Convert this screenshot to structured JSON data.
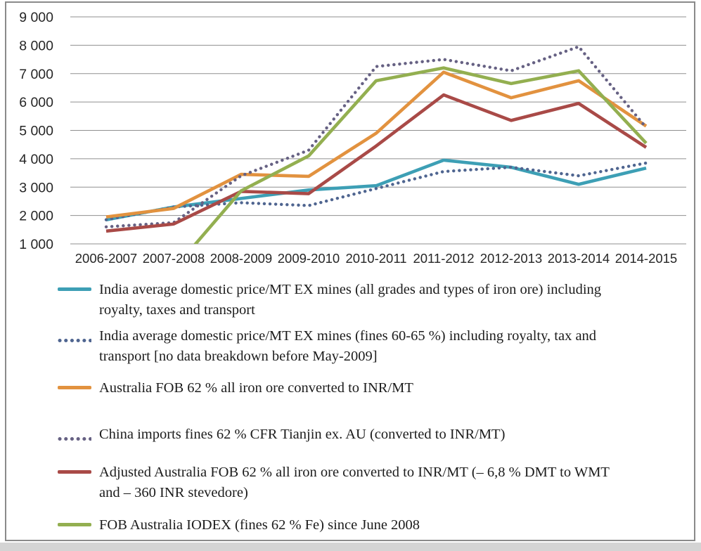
{
  "figure": {
    "type": "scanned line chart",
    "border_color": "#8a8a8a",
    "background": "#ffffff"
  },
  "chart_data": {
    "type": "line",
    "title": "",
    "xlabel": "",
    "ylabel": "",
    "grid": true,
    "legend_position": "bottom-left",
    "ylim": [
      1000,
      9000
    ],
    "y_tick_labels": [
      "9 000",
      "8 000",
      "7 000",
      "6 000",
      "5 000",
      "4 000",
      "3 000",
      "2 000",
      "1 000"
    ],
    "categories": [
      "2006-2007",
      "2007-2008",
      "2008-2009",
      "2009-2010",
      "2010-2011",
      "2011-2012",
      "2012-2013",
      "2013-2014",
      "2014-2015"
    ],
    "units": "INR/MT",
    "series": [
      {
        "name": "India average domestic price/MT EX mines (all grades and types of iron ore) including royalty, taxes and transport",
        "label_lines": [
          "India average domestic price/MT EX mines (all grades and types of iron ore) including",
          "royalty, taxes and transport"
        ],
        "color": "#3d9fb5",
        "style": "solid",
        "values": [
          1850,
          2300,
          2600,
          2900,
          3050,
          3950,
          3700,
          3100,
          3670
        ]
      },
      {
        "name": "India average domestic price/MT EX mines (fines 60-65 %) including royalty, tax and transport [no data breakdown before May-2009]",
        "label_lines": [
          "India average domestic price/MT EX mines (fines 60-65 %) including royalty, tax and",
          "transport [no data breakdown before May-2009]"
        ],
        "color": "#4f6590",
        "style": "dotted",
        "values": [
          1850,
          2300,
          2450,
          2350,
          2950,
          3550,
          3700,
          3400,
          3850
        ]
      },
      {
        "name": "Australia FOB 62 % all iron ore converted to INR/MT",
        "label_lines": [
          "Australia FOB 62 % all iron ore converted to INR/MT"
        ],
        "color": "#e2923f",
        "style": "solid",
        "values": [
          1950,
          2250,
          3450,
          3380,
          4900,
          7050,
          6150,
          6750,
          5150
        ]
      },
      {
        "name": "China imports fines 62 % CFR Tianjin ex. AU (converted to INR/MT)",
        "label_lines": [
          "China imports fines 62 % CFR Tianjin ex. AU (converted to INR/MT)"
        ],
        "color": "#666183",
        "style": "dotted",
        "values": [
          1600,
          1750,
          3400,
          4300,
          7250,
          7500,
          7100,
          7950,
          5100
        ]
      },
      {
        "name": "Adjusted Australia FOB 62 % all iron ore converted to INR/MT (– 6,8 % DMT to WMT and – 360 INR stevedore)",
        "label_lines": [
          "Adjusted Australia FOB 62 % all iron ore converted to INR/MT (– 6,8 % DMT to WMT",
          "and – 360 INR stevedore)"
        ],
        "color": "#a94a47",
        "style": "solid",
        "values": [
          1450,
          1700,
          2850,
          2770,
          4450,
          6250,
          5350,
          5950,
          4400
        ]
      },
      {
        "name": "FOB Australia IODEX (fines 62 % Fe) since June 2008",
        "label_lines": [
          "FOB Australia IODEX (fines 62 % Fe) since June 2008"
        ],
        "color": "#93af50",
        "style": "solid",
        "values": [
          null,
          100,
          2870,
          4100,
          6750,
          7200,
          6650,
          7100,
          4550
        ],
        "note": "first visible value clipped at axis minimum"
      }
    ]
  }
}
